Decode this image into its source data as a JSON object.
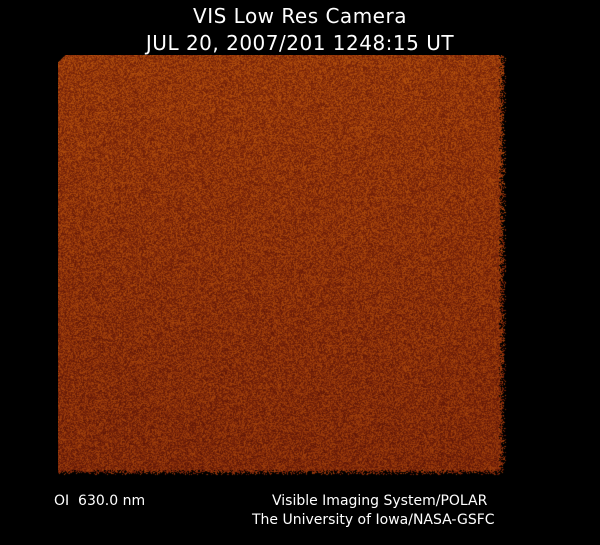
{
  "header": {
    "title": "VIS Low Res Camera",
    "datetime": "JUL 20, 2007/201 1248:15 UT"
  },
  "image": {
    "description_color": "#8c3c0a"
  },
  "footer": {
    "wavelength": "OI  630.0 nm",
    "credit_line1": "Visible Imaging System/POLAR",
    "credit_line2": "The University of Iowa/NASA-GSFC"
  }
}
